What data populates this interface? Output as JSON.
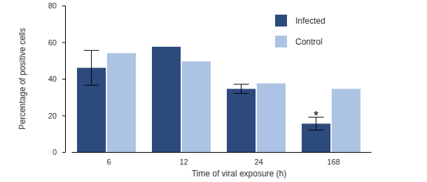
{
  "chart_data": {
    "type": "bar",
    "x_label": "Time of viral exposure (h)",
    "y_label": "Percentage of positive cells",
    "categories": [
      "6",
      "12",
      "24",
      "168"
    ],
    "series": [
      {
        "name": "Infected",
        "color": "#2c4a7c",
        "values": [
          46,
          57.5,
          34.5,
          15.5
        ],
        "errors": [
          9.5,
          null,
          2.5,
          3.5
        ]
      },
      {
        "name": "Control",
        "color": "#adc3e3",
        "values": [
          54,
          49.5,
          37.5,
          34.5
        ]
      }
    ],
    "ylim": [
      0,
      80
    ],
    "yticks": [
      0,
      20,
      40,
      60,
      80
    ],
    "grid": false,
    "legend": "upper right",
    "annotations": [
      {
        "text": "*",
        "category": "168",
        "series": "Infected"
      }
    ]
  }
}
